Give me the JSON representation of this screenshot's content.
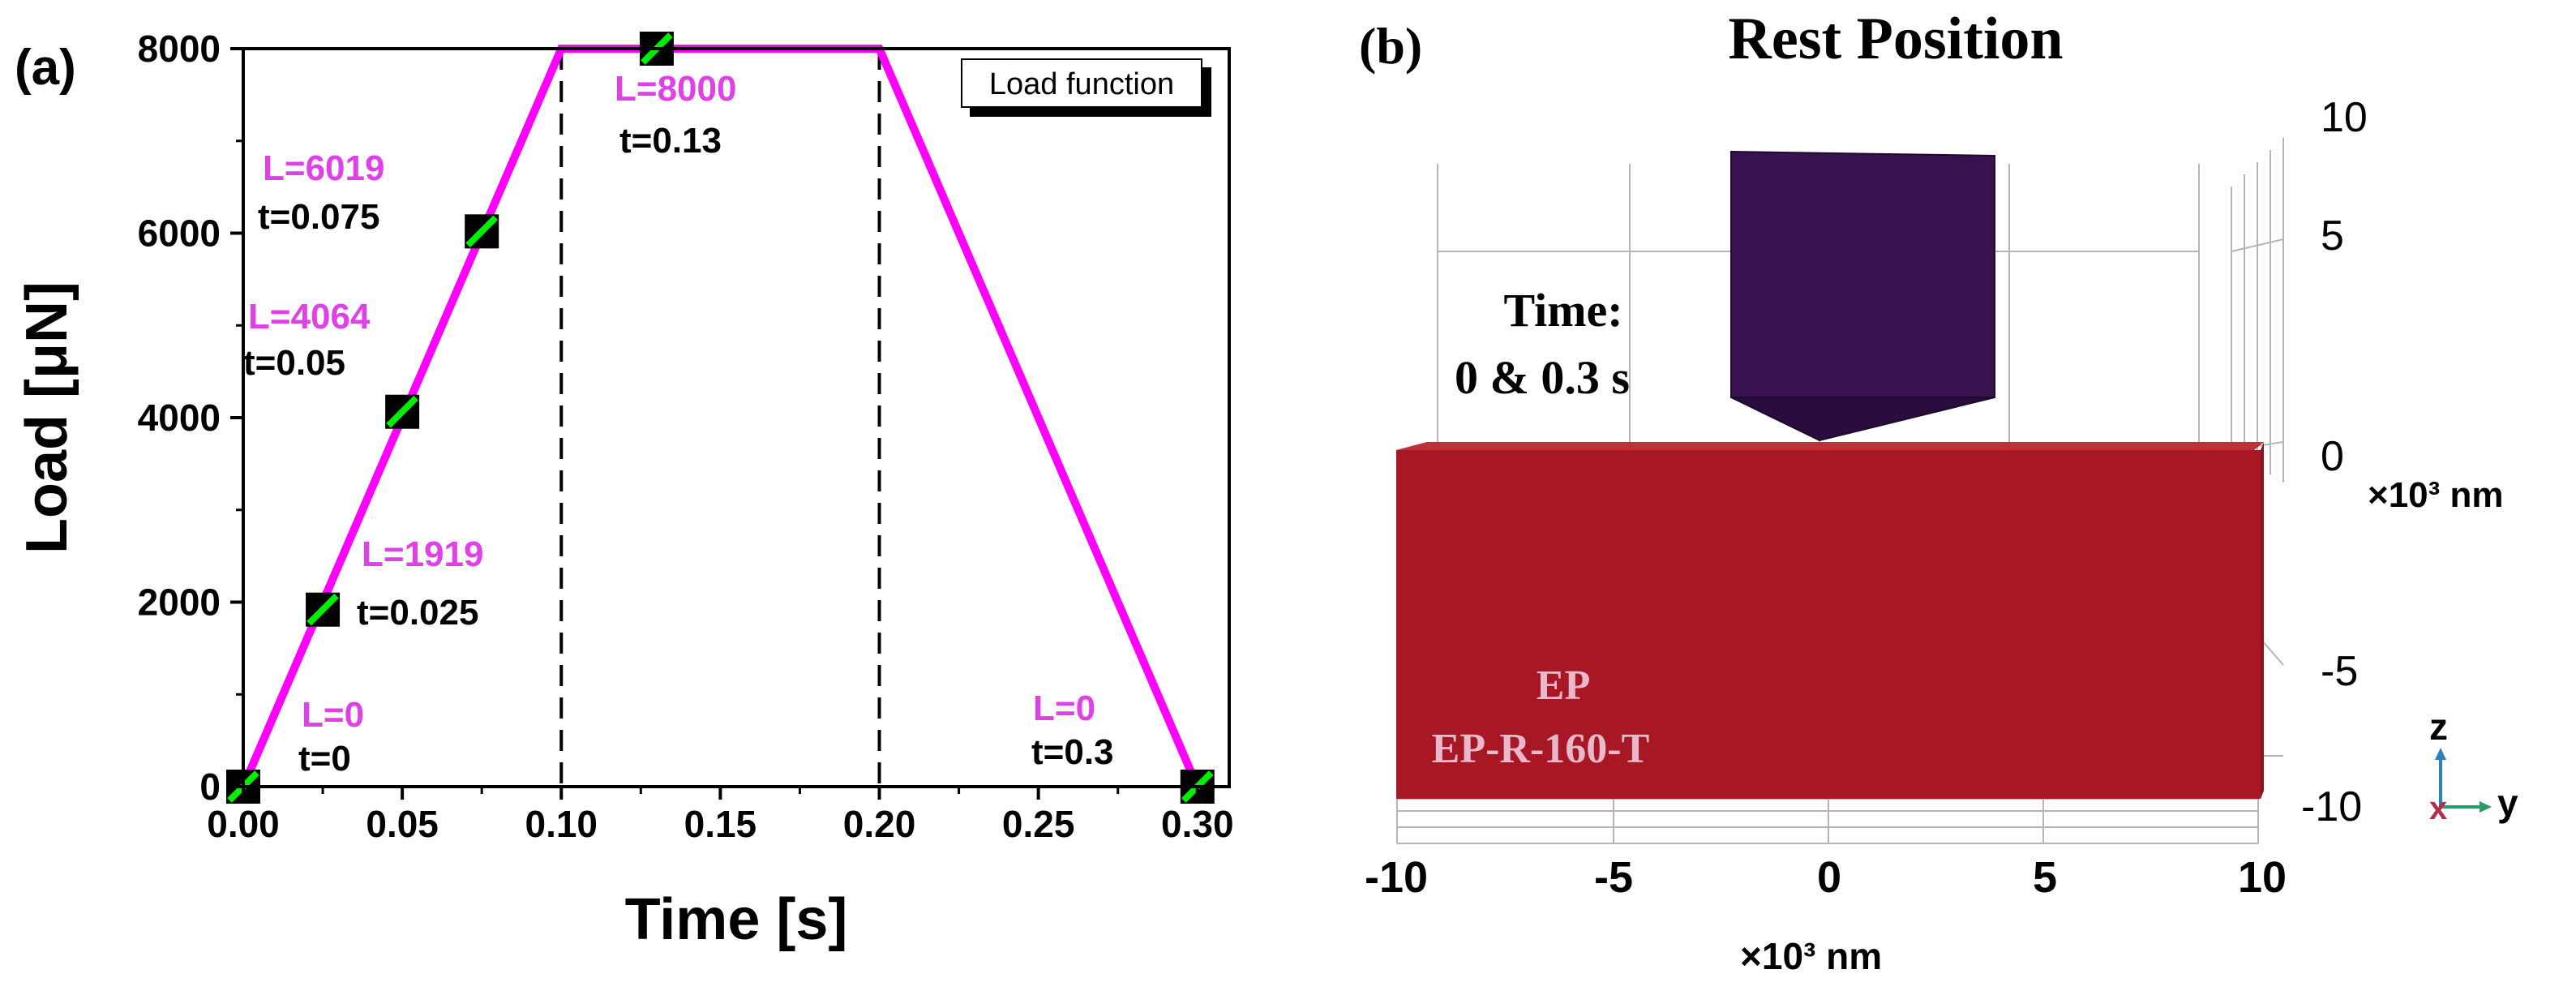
{
  "panel_a": {
    "label": "(a)",
    "legend_label": "Load function",
    "annotations": [
      {
        "L": "L=0",
        "t": "t=0"
      },
      {
        "L": "L=1919",
        "t": "t=0.025"
      },
      {
        "L": "L=4064",
        "t": "t=0.05"
      },
      {
        "L": "L=6019",
        "t": "t=0.075"
      },
      {
        "L": "L=8000",
        "t": "t=0.13"
      },
      {
        "L": "L=0",
        "t": "t=0.3"
      }
    ]
  },
  "panel_b": {
    "label": "(b)",
    "title": "Rest Position",
    "time_label_1": "Time:",
    "time_label_2": "0 & 0.3 s",
    "material_1": "EP",
    "material_2": "EP-R-160-T",
    "z_ticks": [
      "10",
      "5",
      "0",
      "-5",
      "-10"
    ],
    "z_unit": "×10³ nm",
    "y_ticks": [
      "-10",
      "-5",
      "0",
      "5",
      "10"
    ],
    "y_unit": "×10³ nm",
    "axis_z": "z",
    "axis_y": "y",
    "axis_x": "x"
  },
  "chart_data": [
    {
      "type": "line",
      "panel": "a",
      "xlabel": "Time [s]",
      "ylabel": "Load [μN]",
      "xlim": [
        0.0,
        0.31
      ],
      "ylim": [
        0,
        8000
      ],
      "x_ticks": [
        "0.00",
        "0.05",
        "0.10",
        "0.15",
        "0.20",
        "0.25",
        "0.30"
      ],
      "y_ticks": [
        "0",
        "2000",
        "4000",
        "6000",
        "8000"
      ],
      "series": [
        {
          "name": "Load function",
          "color": "#ff00ff",
          "x": [
            0.0,
            0.1,
            0.2,
            0.3
          ],
          "y": [
            0,
            8000,
            8000,
            0
          ]
        }
      ],
      "markers": [
        {
          "x": 0.0,
          "y": 0
        },
        {
          "x": 0.025,
          "y": 1919
        },
        {
          "x": 0.05,
          "y": 4064
        },
        {
          "x": 0.075,
          "y": 6019
        },
        {
          "x": 0.13,
          "y": 8000
        },
        {
          "x": 0.3,
          "y": 0
        }
      ],
      "vlines": [
        0.1,
        0.2
      ]
    }
  ],
  "colors": {
    "load_line": "#ff00ff",
    "marker_fill": "#000000",
    "marker_stripe": "#00ee00",
    "indenter": "#38124f",
    "sample": "#a81724",
    "sample_text": "#e9b8cc",
    "grid": "#bbbbbb"
  }
}
